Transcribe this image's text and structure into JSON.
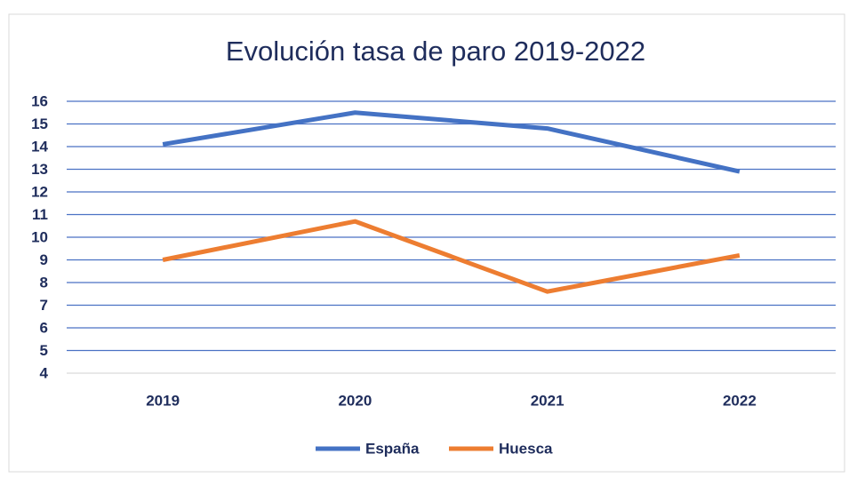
{
  "chart_data": {
    "type": "line",
    "title": "Evolución tasa de paro 2019-2022",
    "categories": [
      "2019",
      "2020",
      "2021",
      "2022"
    ],
    "series": [
      {
        "name": "España",
        "color": "#4472c4",
        "values": [
          14.1,
          15.5,
          14.8,
          12.9
        ]
      },
      {
        "name": "Huesca",
        "color": "#ed7d31",
        "values": [
          9.0,
          10.7,
          7.6,
          9.2
        ]
      }
    ],
    "ylim": [
      4,
      16
    ],
    "yticks": [
      4,
      5,
      6,
      7,
      8,
      9,
      10,
      11,
      12,
      13,
      14,
      15,
      16
    ],
    "grid": true,
    "legend": "bottom"
  }
}
